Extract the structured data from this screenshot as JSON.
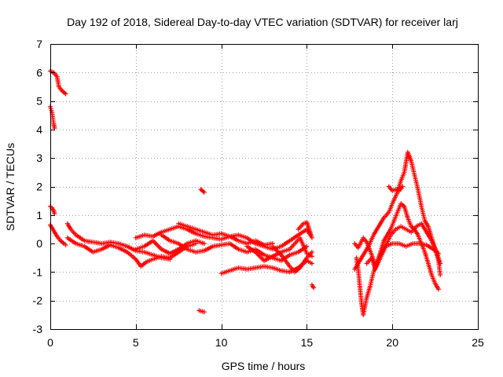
{
  "chart_data": {
    "type": "scatter",
    "title": "Day 192 of 2018, Sidereal Day-to-day VTEC variation (SDTVAR) for receiver larj",
    "xlabel": "GPS time / hours",
    "ylabel": "SDTVAR / TECUs",
    "xlim": [
      0,
      25
    ],
    "ylim": [
      -3,
      7
    ],
    "xticks": [
      0,
      5,
      10,
      15,
      20,
      25
    ],
    "yticks": [
      -3,
      -2,
      -1,
      0,
      1,
      2,
      3,
      4,
      5,
      6,
      7
    ],
    "grid": true,
    "marker": "+",
    "series": [
      {
        "name": "SDTVAR",
        "color": "#ff0000",
        "segments": [
          [
            [
              0.0,
              6.05
            ],
            [
              0.2,
              6.0
            ],
            [
              0.4,
              5.85
            ],
            [
              0.5,
              5.5
            ],
            [
              0.7,
              5.35
            ],
            [
              0.9,
              5.25
            ]
          ],
          [
            [
              0.0,
              4.8
            ],
            [
              0.1,
              4.6
            ],
            [
              0.15,
              4.4
            ],
            [
              0.2,
              4.2
            ],
            [
              0.25,
              4.05
            ]
          ],
          [
            [
              0.0,
              1.3
            ],
            [
              0.1,
              1.25
            ],
            [
              0.2,
              1.15
            ],
            [
              0.25,
              1.05
            ]
          ],
          [
            [
              0.0,
              0.65
            ],
            [
              0.2,
              0.45
            ],
            [
              0.4,
              0.25
            ],
            [
              0.6,
              0.1
            ],
            [
              0.8,
              0.0
            ],
            [
              0.9,
              -0.05
            ]
          ],
          [
            [
              1.0,
              0.7
            ],
            [
              1.2,
              0.5
            ],
            [
              1.5,
              0.3
            ],
            [
              2.0,
              0.1
            ],
            [
              2.5,
              0.05
            ],
            [
              3.0,
              0.0
            ],
            [
              3.5,
              0.05
            ],
            [
              4.0,
              0.0
            ],
            [
              4.5,
              -0.1
            ],
            [
              5.0,
              -0.25
            ],
            [
              5.5,
              -0.3
            ],
            [
              6.0,
              -0.4
            ],
            [
              6.5,
              -0.5
            ],
            [
              7.0,
              -0.55
            ]
          ],
          [
            [
              1.0,
              0.2
            ],
            [
              1.5,
              0.0
            ],
            [
              2.0,
              -0.1
            ],
            [
              2.5,
              -0.3
            ],
            [
              3.0,
              -0.2
            ],
            [
              3.5,
              -0.05
            ],
            [
              4.0,
              -0.15
            ],
            [
              4.5,
              -0.3
            ],
            [
              5.0,
              -0.55
            ],
            [
              5.3,
              -0.8
            ],
            [
              5.6,
              -0.65
            ],
            [
              6.0,
              -0.55
            ],
            [
              6.5,
              -0.45
            ],
            [
              7.0,
              -0.5
            ],
            [
              7.5,
              -0.3
            ],
            [
              8.0,
              -0.1
            ],
            [
              8.5,
              0.0
            ]
          ],
          [
            [
              5.0,
              0.2
            ],
            [
              5.5,
              0.3
            ],
            [
              6.0,
              0.25
            ],
            [
              6.5,
              0.4
            ],
            [
              7.0,
              0.5
            ],
            [
              7.5,
              0.6
            ],
            [
              8.0,
              0.5
            ],
            [
              8.5,
              0.35
            ],
            [
              9.0,
              0.25
            ],
            [
              9.5,
              0.2
            ],
            [
              10.0,
              0.15
            ],
            [
              10.5,
              0.25
            ],
            [
              11.0,
              0.1
            ],
            [
              11.5,
              0.0
            ],
            [
              12.0,
              0.1
            ],
            [
              12.5,
              -0.05
            ],
            [
              13.0,
              0.0
            ]
          ],
          [
            [
              5.0,
              -0.2
            ],
            [
              5.5,
              -0.1
            ],
            [
              6.0,
              0.1
            ],
            [
              6.5,
              -0.2
            ],
            [
              7.0,
              -0.35
            ],
            [
              7.5,
              -0.2
            ],
            [
              8.0,
              0.0
            ],
            [
              8.5,
              0.1
            ],
            [
              9.0,
              0.0
            ]
          ],
          [
            [
              6.5,
              0.3
            ],
            [
              7.0,
              0.1
            ],
            [
              7.5,
              0.0
            ],
            [
              8.0,
              -0.2
            ],
            [
              8.5,
              -0.3
            ],
            [
              9.0,
              -0.25
            ],
            [
              9.5,
              -0.1
            ],
            [
              10.0,
              -0.05
            ],
            [
              10.5,
              0.0
            ],
            [
              11.0,
              -0.2
            ],
            [
              11.5,
              -0.3
            ],
            [
              12.0,
              -0.2
            ],
            [
              12.5,
              -0.4
            ],
            [
              13.0,
              -0.5
            ],
            [
              13.5,
              -0.6
            ],
            [
              14.0,
              -0.4
            ],
            [
              14.5,
              -0.3
            ],
            [
              15.0,
              -0.1
            ]
          ],
          [
            [
              7.5,
              0.7
            ],
            [
              8.0,
              0.6
            ],
            [
              8.5,
              0.5
            ],
            [
              9.0,
              0.4
            ],
            [
              9.5,
              0.3
            ],
            [
              10.0,
              0.35
            ],
            [
              10.5,
              0.25
            ],
            [
              11.0,
              0.3
            ],
            [
              11.5,
              0.2
            ],
            [
              12.0,
              0.0
            ],
            [
              12.5,
              -0.1
            ],
            [
              13.0,
              -0.2
            ],
            [
              13.5,
              -0.1
            ],
            [
              14.0,
              0.1
            ],
            [
              14.5,
              0.3
            ],
            [
              15.0,
              0.5
            ],
            [
              15.2,
              0.3
            ]
          ],
          [
            [
              8.8,
              1.9
            ],
            [
              9.0,
              1.8
            ]
          ],
          [
            [
              8.7,
              -2.35
            ],
            [
              9.0,
              -2.4
            ]
          ],
          [
            [
              10.0,
              -1.05
            ],
            [
              10.5,
              -0.95
            ],
            [
              11.0,
              -0.85
            ],
            [
              11.5,
              -0.9
            ],
            [
              12.0,
              -0.85
            ],
            [
              12.5,
              -0.8
            ],
            [
              13.0,
              -0.85
            ],
            [
              13.5,
              -0.95
            ],
            [
              14.0,
              -1.0
            ],
            [
              14.5,
              -0.85
            ],
            [
              15.0,
              -0.6
            ],
            [
              15.3,
              -0.7
            ]
          ],
          [
            [
              11.5,
              -0.1
            ],
            [
              12.0,
              -0.3
            ],
            [
              12.5,
              -0.6
            ],
            [
              13.0,
              -0.45
            ],
            [
              13.5,
              -0.3
            ],
            [
              14.0,
              -0.2
            ],
            [
              14.3,
              0.0
            ],
            [
              14.6,
              0.2
            ],
            [
              15.0,
              -0.35
            ],
            [
              15.3,
              -0.45
            ]
          ],
          [
            [
              13.0,
              -0.1
            ],
            [
              13.5,
              -0.4
            ],
            [
              14.0,
              -0.8
            ],
            [
              14.3,
              -1.0
            ],
            [
              14.6,
              -0.85
            ],
            [
              15.0,
              -0.5
            ],
            [
              15.3,
              -0.3
            ]
          ],
          [
            [
              14.5,
              0.5
            ],
            [
              14.8,
              0.7
            ],
            [
              15.0,
              0.75
            ],
            [
              15.3,
              0.2
            ]
          ],
          [
            [
              15.3,
              -1.45
            ],
            [
              15.4,
              -1.55
            ]
          ],
          [
            [
              17.8,
              0.0
            ],
            [
              18.0,
              -0.15
            ],
            [
              18.3,
              0.2
            ],
            [
              18.5,
              0.05
            ],
            [
              18.8,
              -0.4
            ],
            [
              19.0,
              -0.8
            ],
            [
              19.3,
              -0.4
            ],
            [
              19.6,
              -0.1
            ],
            [
              20.0,
              0.0
            ],
            [
              20.4,
              0.0
            ],
            [
              20.8,
              -0.1
            ],
            [
              21.2,
              0.0
            ],
            [
              21.6,
              0.0
            ],
            [
              22.0,
              -0.05
            ],
            [
              22.4,
              -0.2
            ],
            [
              22.7,
              -0.35
            ]
          ],
          [
            [
              17.9,
              -0.5
            ],
            [
              18.0,
              -0.9
            ],
            [
              18.1,
              -1.5
            ],
            [
              18.2,
              -2.1
            ],
            [
              18.3,
              -2.5
            ],
            [
              18.5,
              -1.9
            ],
            [
              18.7,
              -1.5
            ],
            [
              18.9,
              -1.0
            ],
            [
              19.1,
              -0.7
            ],
            [
              19.3,
              -0.3
            ],
            [
              19.5,
              0.1
            ],
            [
              19.7,
              0.3
            ],
            [
              19.9,
              0.5
            ],
            [
              20.1,
              0.8
            ],
            [
              20.3,
              1.1
            ],
            [
              20.5,
              1.4
            ],
            [
              20.7,
              1.3
            ],
            [
              20.9,
              0.9
            ],
            [
              21.1,
              0.6
            ],
            [
              21.3,
              0.5
            ],
            [
              21.5,
              0.3
            ],
            [
              21.7,
              0.0
            ],
            [
              21.9,
              -0.3
            ],
            [
              22.1,
              -0.7
            ],
            [
              22.3,
              -1.1
            ],
            [
              22.5,
              -1.4
            ],
            [
              22.7,
              -1.6
            ]
          ],
          [
            [
              17.8,
              -0.9
            ],
            [
              18.0,
              -0.7
            ],
            [
              18.3,
              -0.4
            ],
            [
              18.6,
              -0.1
            ],
            [
              18.9,
              0.3
            ],
            [
              19.2,
              0.6
            ],
            [
              19.5,
              0.9
            ],
            [
              19.8,
              1.1
            ],
            [
              20.0,
              1.4
            ],
            [
              20.3,
              1.8
            ],
            [
              20.5,
              2.2
            ],
            [
              20.7,
              2.5
            ],
            [
              20.9,
              3.2
            ],
            [
              21.0,
              3.05
            ],
            [
              21.1,
              2.9
            ],
            [
              21.3,
              2.4
            ],
            [
              21.5,
              1.9
            ],
            [
              21.7,
              1.3
            ],
            [
              21.9,
              0.8
            ],
            [
              22.1,
              0.6
            ],
            [
              22.3,
              0.2
            ],
            [
              22.5,
              -0.2
            ],
            [
              22.7,
              -0.6
            ],
            [
              22.8,
              -1.1
            ]
          ],
          [
            [
              19.8,
              2.0
            ],
            [
              20.0,
              1.85
            ],
            [
              20.2,
              1.9
            ],
            [
              20.4,
              1.85
            ],
            [
              20.6,
              2.0
            ]
          ],
          [
            [
              18.5,
              -0.7
            ],
            [
              18.8,
              -0.5
            ],
            [
              19.0,
              -0.9
            ],
            [
              19.3,
              -0.5
            ],
            [
              19.6,
              -0.1
            ],
            [
              19.9,
              0.3
            ],
            [
              20.2,
              0.5
            ],
            [
              20.5,
              0.6
            ],
            [
              20.8,
              0.5
            ],
            [
              21.1,
              0.4
            ],
            [
              21.4,
              0.6
            ],
            [
              21.7,
              0.7
            ],
            [
              22.0,
              0.4
            ],
            [
              22.3,
              0.1
            ],
            [
              22.6,
              -0.3
            ],
            [
              22.8,
              -0.7
            ]
          ]
        ]
      }
    ]
  }
}
